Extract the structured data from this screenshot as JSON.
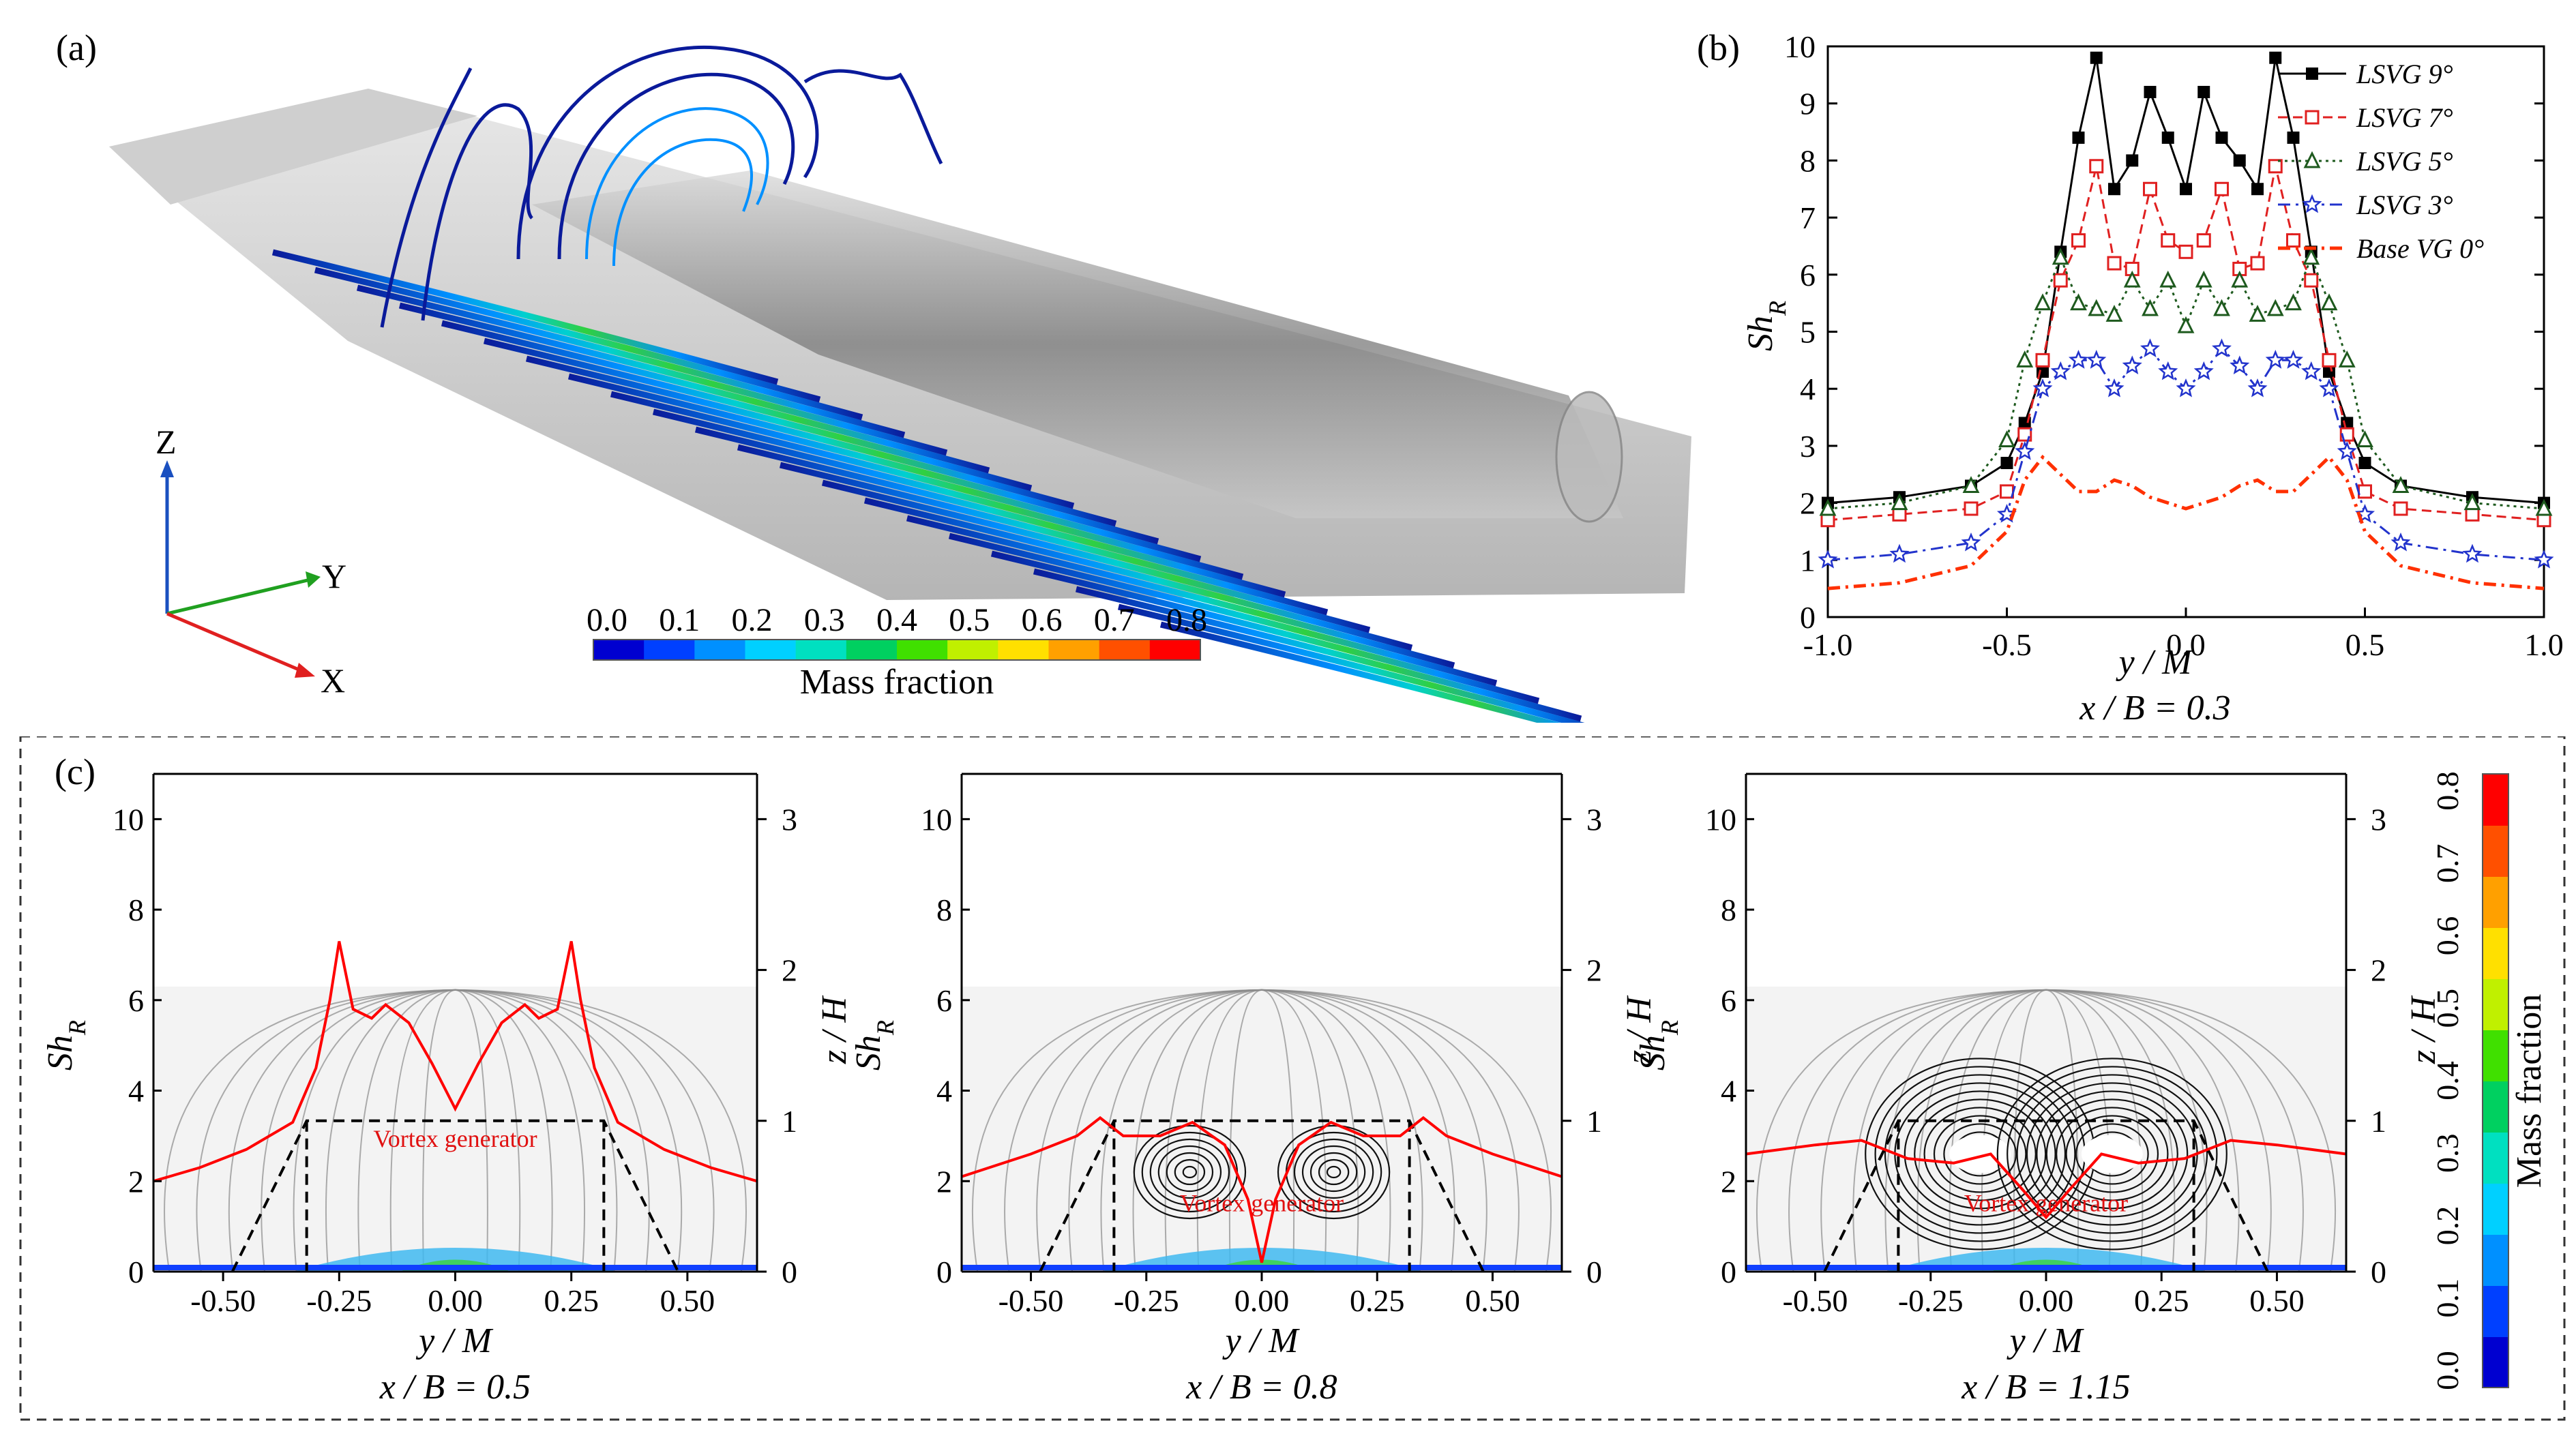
{
  "figure": {
    "panel_a": {
      "label": "(a)",
      "axes": {
        "z": "Z",
        "y": "Y",
        "x": "X"
      },
      "colorbar": {
        "title": "Mass fraction",
        "ticks": [
          "0.0",
          "0.1",
          "0.2",
          "0.3",
          "0.4",
          "0.5",
          "0.6",
          "0.7",
          "0.8"
        ],
        "colors": [
          "#0000d0",
          "#0040ff",
          "#0090ff",
          "#00d0ff",
          "#00e0c0",
          "#00d060",
          "#40e000",
          "#c0f000",
          "#ffe000",
          "#ffa000",
          "#ff5000",
          "#ff0000"
        ]
      }
    },
    "panel_b": {
      "label": "(b)"
    },
    "panel_c": {
      "label": "(c)",
      "vg_label": "Vortex generator",
      "colorbar": {
        "title": "Mass fraction",
        "ticks": [
          "0.0",
          "0.1",
          "0.2",
          "0.3",
          "0.4",
          "0.5",
          "0.6",
          "0.7",
          "0.8"
        ]
      }
    }
  },
  "chart_data": [
    {
      "id": "b",
      "type": "line",
      "title": "",
      "xlabel": "y / M",
      "ylabel": "Sh_R",
      "caption": "x / B = 0.3",
      "xlim": [
        -1.0,
        1.0
      ],
      "ylim": [
        0,
        10
      ],
      "xticks": [
        "-1.0",
        "-0.5",
        "0.0",
        "0.5",
        "1.0"
      ],
      "yticks": [
        "0",
        "1",
        "2",
        "3",
        "4",
        "5",
        "6",
        "7",
        "8",
        "9",
        "10"
      ],
      "legend_position": "top-right",
      "x": [
        -1.0,
        -0.8,
        -0.6,
        -0.5,
        -0.45,
        -0.4,
        -0.35,
        -0.3,
        -0.25,
        -0.2,
        -0.15,
        -0.1,
        -0.05,
        0.0,
        0.05,
        0.1,
        0.15,
        0.2,
        0.25,
        0.3,
        0.35,
        0.4,
        0.45,
        0.5,
        0.6,
        0.8,
        1.0
      ],
      "series": [
        {
          "name": "LSVG 9°",
          "color": "#000000",
          "marker": "square-filled",
          "dash": "solid",
          "values": [
            2.0,
            2.1,
            2.3,
            2.7,
            3.4,
            4.3,
            6.4,
            8.4,
            9.8,
            7.5,
            8.0,
            9.2,
            8.4,
            7.5,
            9.2,
            8.4,
            8.0,
            7.5,
            9.8,
            8.4,
            6.4,
            4.3,
            3.4,
            2.7,
            2.3,
            2.1,
            2.0
          ]
        },
        {
          "name": "LSVG 7°",
          "color": "#e02020",
          "marker": "square-open",
          "dash": "dashed",
          "values": [
            1.7,
            1.8,
            1.9,
            2.2,
            3.2,
            4.5,
            5.9,
            6.6,
            7.9,
            6.2,
            6.1,
            7.5,
            6.6,
            6.4,
            6.6,
            7.5,
            6.1,
            6.2,
            7.9,
            6.6,
            5.9,
            4.5,
            3.2,
            2.2,
            1.9,
            1.8,
            1.7
          ]
        },
        {
          "name": "LSVG 5°",
          "color": "#1e5a1e",
          "marker": "triangle-open",
          "dash": "dotted",
          "values": [
            1.9,
            2.0,
            2.3,
            3.1,
            4.5,
            5.5,
            6.3,
            5.5,
            5.4,
            5.3,
            5.9,
            5.4,
            5.9,
            5.1,
            5.9,
            5.4,
            5.9,
            5.3,
            5.4,
            5.5,
            6.3,
            5.5,
            4.5,
            3.1,
            2.3,
            2.0,
            1.9
          ]
        },
        {
          "name": "LSVG 3°",
          "color": "#2233cc",
          "marker": "star-open",
          "dash": "dashdot",
          "values": [
            1.0,
            1.1,
            1.3,
            1.8,
            2.9,
            4.0,
            4.3,
            4.5,
            4.5,
            4.0,
            4.4,
            4.7,
            4.3,
            4.0,
            4.3,
            4.7,
            4.4,
            4.0,
            4.5,
            4.5,
            4.3,
            4.0,
            2.9,
            1.8,
            1.3,
            1.1,
            1.0
          ]
        },
        {
          "name": "Base VG 0°",
          "color": "#ff3000",
          "marker": "none",
          "dash": "dashdot",
          "values": [
            0.5,
            0.6,
            0.9,
            1.5,
            2.4,
            2.8,
            2.5,
            2.2,
            2.2,
            2.4,
            2.3,
            2.1,
            2.0,
            1.9,
            2.0,
            2.1,
            2.3,
            2.4,
            2.2,
            2.2,
            2.5,
            2.8,
            2.4,
            1.5,
            0.9,
            0.6,
            0.5
          ]
        }
      ]
    },
    {
      "id": "c1",
      "type": "line",
      "xlabel": "y / M",
      "ylabel": "Sh_R",
      "y2label": "z / H",
      "caption": "x / B = 0.5",
      "xlim": [
        -0.65,
        0.65
      ],
      "ylim": [
        0,
        11
      ],
      "y2lim": [
        0,
        3.3
      ],
      "xticks": [
        "-0.50",
        "-0.25",
        "0.00",
        "0.25",
        "0.50"
      ],
      "yticks": [
        "0",
        "2",
        "4",
        "6",
        "8",
        "10"
      ],
      "y2ticks": [
        "0",
        "1",
        "2",
        "3"
      ],
      "series": [
        {
          "name": "Sh_R",
          "color": "#ff0000",
          "x": [
            -0.65,
            -0.55,
            -0.45,
            -0.35,
            -0.3,
            -0.27,
            -0.25,
            -0.22,
            -0.18,
            -0.15,
            -0.1,
            -0.05,
            0.0,
            0.05,
            0.1,
            0.15,
            0.18,
            0.22,
            0.25,
            0.27,
            0.3,
            0.35,
            0.45,
            0.55,
            0.65
          ],
          "values": [
            2.0,
            2.3,
            2.7,
            3.3,
            4.5,
            6.0,
            7.3,
            5.8,
            5.6,
            5.9,
            5.5,
            4.6,
            3.6,
            4.6,
            5.5,
            5.9,
            5.6,
            5.8,
            7.3,
            6.0,
            4.5,
            3.3,
            2.7,
            2.3,
            2.0
          ]
        }
      ]
    },
    {
      "id": "c2",
      "type": "line",
      "xlabel": "y / M",
      "ylabel": "Sh_R",
      "y2label": "z / H",
      "caption": "x / B = 0.8",
      "xlim": [
        -0.65,
        0.65
      ],
      "ylim": [
        0,
        11
      ],
      "y2lim": [
        0,
        3.3
      ],
      "xticks": [
        "-0.50",
        "-0.25",
        "0.00",
        "0.25",
        "0.50"
      ],
      "yticks": [
        "0",
        "2",
        "4",
        "6",
        "8",
        "10"
      ],
      "y2ticks": [
        "0",
        "1",
        "2",
        "3"
      ],
      "series": [
        {
          "name": "Sh_R",
          "color": "#ff0000",
          "x": [
            -0.65,
            -0.5,
            -0.4,
            -0.35,
            -0.3,
            -0.22,
            -0.15,
            -0.08,
            -0.03,
            0.0,
            0.03,
            0.08,
            0.15,
            0.22,
            0.3,
            0.35,
            0.4,
            0.5,
            0.65
          ],
          "values": [
            2.1,
            2.6,
            3.0,
            3.4,
            3.0,
            3.0,
            3.3,
            2.8,
            1.6,
            0.2,
            1.6,
            2.8,
            3.3,
            3.0,
            3.0,
            3.4,
            3.0,
            2.6,
            2.1
          ]
        }
      ]
    },
    {
      "id": "c3",
      "type": "line",
      "xlabel": "y / M",
      "ylabel": "Sh_R",
      "y2label": "z / H",
      "caption": "x / B = 1.15",
      "xlim": [
        -0.65,
        0.65
      ],
      "ylim": [
        0,
        11
      ],
      "y2lim": [
        0,
        3.3
      ],
      "xticks": [
        "-0.50",
        "-0.25",
        "0.00",
        "0.25",
        "0.50"
      ],
      "yticks": [
        "0",
        "2",
        "4",
        "6",
        "8",
        "10"
      ],
      "y2ticks": [
        "0",
        "1",
        "2",
        "3"
      ],
      "series": [
        {
          "name": "Sh_R",
          "color": "#ff0000",
          "x": [
            -0.65,
            -0.5,
            -0.4,
            -0.3,
            -0.2,
            -0.12,
            -0.05,
            0.0,
            0.05,
            0.12,
            0.2,
            0.3,
            0.4,
            0.5,
            0.65
          ],
          "values": [
            2.6,
            2.8,
            2.9,
            2.5,
            2.4,
            2.6,
            1.8,
            1.2,
            1.8,
            2.6,
            2.4,
            2.5,
            2.9,
            2.8,
            2.6
          ]
        }
      ]
    }
  ]
}
